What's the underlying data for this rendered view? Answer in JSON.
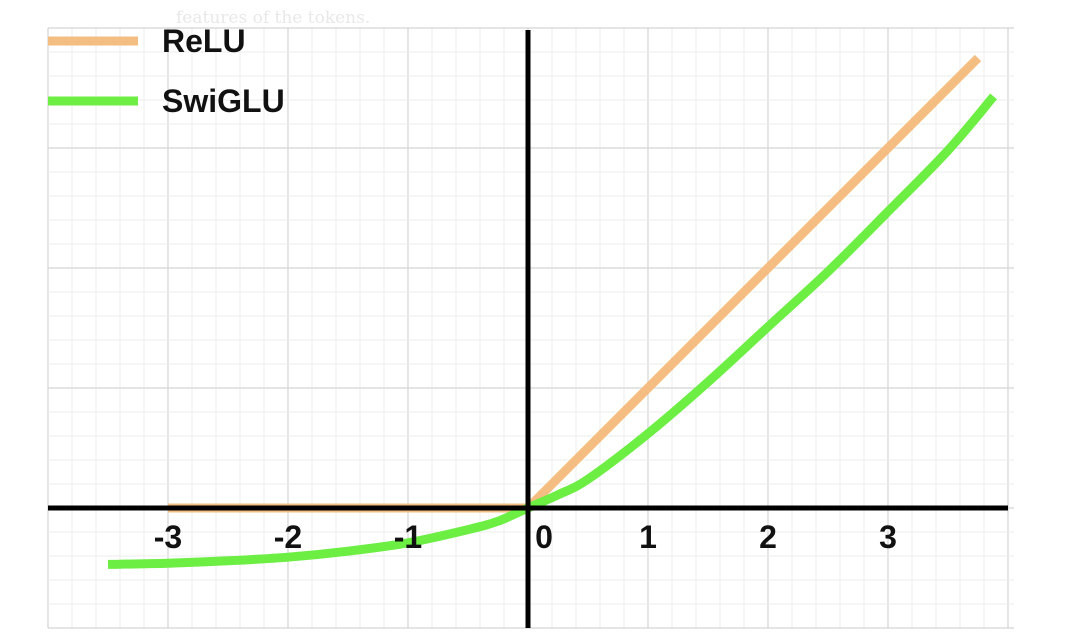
{
  "faint_caption": "features of the tokens.",
  "chart_data": {
    "type": "line",
    "title": "",
    "xlabel": "",
    "ylabel": "",
    "xlim": [
      -4.0,
      4.0
    ],
    "ylim": [
      -1.0,
      4.0
    ],
    "grid": true,
    "legend_position": "top-left",
    "x_ticks": [
      {
        "value": -3,
        "label": "-3"
      },
      {
        "value": -2,
        "label": "-2"
      },
      {
        "value": -1,
        "label": "-1"
      },
      {
        "value": 0,
        "label": "0"
      },
      {
        "value": 1,
        "label": "1"
      },
      {
        "value": 2,
        "label": "2"
      },
      {
        "value": 3,
        "label": "3"
      }
    ],
    "series": [
      {
        "name": "ReLU",
        "color": "#f4bd82",
        "x": [
          -3.0,
          0.0,
          3.75
        ],
        "y": [
          0.0,
          0.0,
          3.75
        ]
      },
      {
        "name": "SwiGLU",
        "color": "#6cee43",
        "x": [
          -3.5,
          -3.0,
          -2.5,
          -2.0,
          -1.5,
          -1.0,
          -0.5,
          -0.25,
          0.0,
          0.25,
          0.5,
          1.0,
          1.5,
          2.0,
          2.5,
          3.0,
          3.5,
          3.88
        ],
        "y": [
          -0.47,
          -0.46,
          -0.44,
          -0.41,
          -0.36,
          -0.29,
          -0.18,
          -0.11,
          0.0,
          0.11,
          0.24,
          0.62,
          1.05,
          1.51,
          1.97,
          2.47,
          2.98,
          3.43
        ]
      }
    ]
  }
}
